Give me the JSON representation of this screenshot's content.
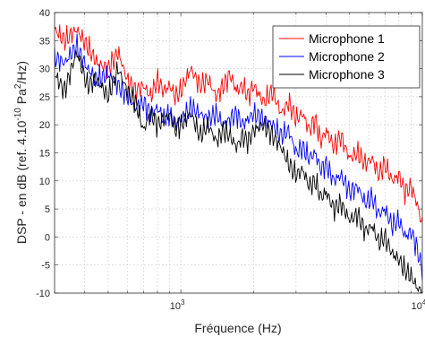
{
  "chart_data": {
    "type": "line",
    "x_scale": "log",
    "xlim": [
      300,
      10000
    ],
    "ylim": [
      -10,
      40
    ],
    "xlabel": "Fréquence (Hz)",
    "ylabel_pre": "DSP - en dB (ref. 4.10",
    "ylabel_exp1": "-10",
    "ylabel_mid": " Pa",
    "ylabel_exp2": "2",
    "ylabel_post": "/Hz)",
    "y_ticks": [
      -10,
      -5,
      0,
      5,
      10,
      15,
      20,
      25,
      30,
      35,
      40
    ],
    "x_tick_labels": [
      {
        "value": 1000,
        "base": "10",
        "exp": "3"
      },
      {
        "value": 10000,
        "base": "10",
        "exp": "4"
      }
    ],
    "grid": true,
    "legend_position": "top-right",
    "series": [
      {
        "name": "Microphone 1",
        "color": "#ff0000",
        "x": [
          300,
          330,
          370,
          410,
          450,
          500,
          550,
          600,
          650,
          700,
          750,
          800,
          850,
          900,
          950,
          1000,
          1100,
          1200,
          1300,
          1400,
          1500,
          1600,
          1700,
          1800,
          1900,
          2000,
          2200,
          2400,
          2600,
          2800,
          3000,
          3200,
          3400,
          3600,
          3800,
          4000,
          4300,
          4600,
          5000,
          5400,
          5800,
          6200,
          6600,
          7000,
          7500,
          8000,
          8500,
          9000,
          9500,
          10000
        ],
        "values": [
          37,
          35,
          37,
          34,
          31,
          30,
          33,
          28,
          26,
          27,
          25,
          28,
          26,
          27,
          25,
          26,
          30,
          27,
          28,
          25,
          27,
          29,
          26,
          27,
          25,
          27,
          24,
          26,
          22,
          24,
          21,
          22,
          19,
          21,
          17,
          19,
          16,
          18,
          14,
          15,
          13,
          14,
          11,
          13,
          10,
          11,
          8,
          9,
          6,
          2
        ]
      },
      {
        "name": "Microphone 2",
        "color": "#0000ff",
        "x": [
          300,
          330,
          370,
          410,
          450,
          500,
          550,
          600,
          650,
          700,
          750,
          800,
          850,
          900,
          950,
          1000,
          1100,
          1200,
          1300,
          1400,
          1500,
          1600,
          1700,
          1800,
          1900,
          2000,
          2200,
          2400,
          2600,
          2800,
          3000,
          3200,
          3400,
          3600,
          3800,
          4000,
          4300,
          4600,
          5000,
          5400,
          5800,
          6200,
          6600,
          7000,
          7500,
          8000,
          8500,
          9000,
          9500,
          10000
        ],
        "values": [
          32,
          31,
          34,
          30,
          28,
          29,
          27,
          25,
          23,
          24,
          22,
          23,
          21,
          22,
          20,
          21,
          23,
          22,
          21,
          22,
          20,
          21,
          22,
          20,
          21,
          22,
          21,
          20,
          18,
          19,
          15,
          16,
          14,
          15,
          12,
          13,
          10,
          11,
          8,
          9,
          6,
          7,
          4,
          5,
          2,
          3,
          0,
          1,
          -2,
          -6
        ]
      },
      {
        "name": "Microphone 3",
        "color": "#000000",
        "x": [
          300,
          330,
          370,
          410,
          450,
          500,
          550,
          600,
          650,
          700,
          750,
          800,
          850,
          900,
          950,
          1000,
          1100,
          1200,
          1300,
          1400,
          1500,
          1600,
          1700,
          1800,
          1900,
          2000,
          2200,
          2400,
          2600,
          2800,
          3000,
          3200,
          3400,
          3600,
          3800,
          4000,
          4300,
          4600,
          5000,
          5400,
          5800,
          6200,
          6600,
          7000,
          7500,
          8000,
          8500,
          9000,
          9500,
          10000
        ],
        "values": [
          29,
          26,
          33,
          27,
          28,
          25,
          30,
          26,
          24,
          19,
          22,
          20,
          21,
          22,
          19,
          20,
          22,
          18,
          20,
          17,
          19,
          18,
          16,
          18,
          17,
          19,
          20,
          18,
          16,
          13,
          11,
          12,
          9,
          10,
          7,
          8,
          5,
          6,
          3,
          4,
          1,
          2,
          -1,
          0,
          -3,
          -4,
          -6,
          -7,
          -9,
          -10
        ]
      }
    ]
  }
}
